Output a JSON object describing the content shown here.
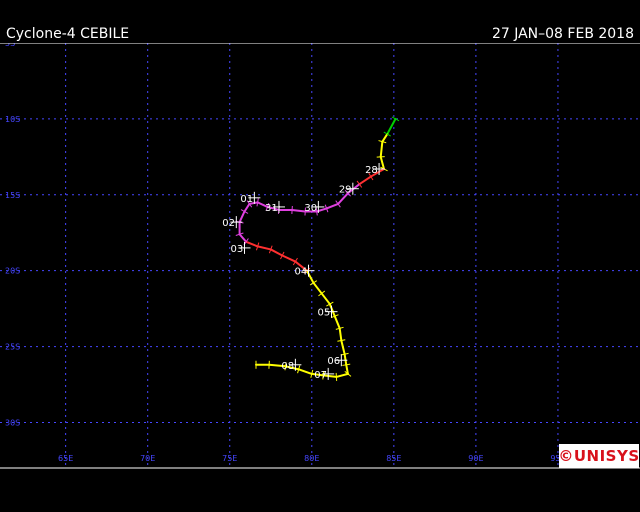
{
  "header": {
    "title": "Cyclone-4 CEBILE",
    "date_range": "27 JAN–08 FEB 2018"
  },
  "logo": {
    "text": "©UNISYS",
    "color": "#d8111b"
  },
  "map": {
    "background": "#000000",
    "grid_color": "#4646ff",
    "lon_range": [
      61,
      100
    ],
    "lat_range": [
      -5,
      -33
    ],
    "lon_labels": [
      "65E",
      "70E",
      "75E",
      "80E",
      "85E",
      "90E",
      "95E"
    ],
    "lat_labels": [
      "5S",
      "10S",
      "15S",
      "20S",
      "25S",
      "30S"
    ],
    "lon_values": [
      65,
      70,
      75,
      80,
      85,
      90,
      95
    ],
    "lat_values": [
      -5,
      -10,
      -15,
      -20,
      -25,
      -30
    ]
  },
  "legend_colors": {
    "depression": "#00d000",
    "storm": "#ffff00",
    "category1": "#ff3030",
    "category2": "#e040e0"
  },
  "track": [
    {
      "lon": 85.1,
      "lat": -10.0,
      "cls": "depression"
    },
    {
      "lon": 84.6,
      "lat": -11.0,
      "cls": "depression"
    },
    {
      "lon": 84.3,
      "lat": -11.5,
      "cls": "storm"
    },
    {
      "lon": 84.2,
      "lat": -12.5,
      "cls": "storm"
    },
    {
      "lon": 84.4,
      "lat": -13.3,
      "cls": "storm"
    },
    {
      "lon": 83.6,
      "lat": -13.8,
      "cls": "category1"
    },
    {
      "lon": 82.9,
      "lat": -14.3,
      "cls": "category1"
    },
    {
      "lon": 82.2,
      "lat": -14.9,
      "cls": "category2"
    },
    {
      "lon": 81.6,
      "lat": -15.6,
      "cls": "category2"
    },
    {
      "lon": 80.9,
      "lat": -15.9,
      "cls": "category2"
    },
    {
      "lon": 80.3,
      "lat": -16.1,
      "cls": "category2"
    },
    {
      "lon": 79.6,
      "lat": -16.1,
      "cls": "category2"
    },
    {
      "lon": 78.8,
      "lat": -16.0,
      "cls": "category2"
    },
    {
      "lon": 78.0,
      "lat": -16.0,
      "cls": "category2"
    },
    {
      "lon": 77.3,
      "lat": -15.8,
      "cls": "category2"
    },
    {
      "lon": 76.7,
      "lat": -15.5,
      "cls": "category2"
    },
    {
      "lon": 76.2,
      "lat": -15.6,
      "cls": "category2"
    },
    {
      "lon": 75.9,
      "lat": -16.1,
      "cls": "category2"
    },
    {
      "lon": 75.6,
      "lat": -16.8,
      "cls": "category2"
    },
    {
      "lon": 75.6,
      "lat": -17.6,
      "cls": "category2"
    },
    {
      "lon": 76.0,
      "lat": -18.1,
      "cls": "category2"
    },
    {
      "lon": 76.7,
      "lat": -18.4,
      "cls": "category1"
    },
    {
      "lon": 77.5,
      "lat": -18.6,
      "cls": "category1"
    },
    {
      "lon": 78.2,
      "lat": -19.0,
      "cls": "category1"
    },
    {
      "lon": 79.0,
      "lat": -19.4,
      "cls": "category1"
    },
    {
      "lon": 79.7,
      "lat": -20.0,
      "cls": "category1"
    },
    {
      "lon": 80.1,
      "lat": -20.8,
      "cls": "storm"
    },
    {
      "lon": 80.6,
      "lat": -21.5,
      "cls": "storm"
    },
    {
      "lon": 81.1,
      "lat": -22.2,
      "cls": "storm"
    },
    {
      "lon": 81.4,
      "lat": -23.0,
      "cls": "storm"
    },
    {
      "lon": 81.7,
      "lat": -23.8,
      "cls": "storm"
    },
    {
      "lon": 81.8,
      "lat": -24.6,
      "cls": "storm"
    },
    {
      "lon": 82.0,
      "lat": -25.5,
      "cls": "storm"
    },
    {
      "lon": 82.1,
      "lat": -26.2,
      "cls": "storm"
    },
    {
      "lon": 82.2,
      "lat": -26.8,
      "cls": "storm"
    },
    {
      "lon": 81.5,
      "lat": -27.0,
      "cls": "storm"
    },
    {
      "lon": 80.7,
      "lat": -26.9,
      "cls": "storm"
    },
    {
      "lon": 80.0,
      "lat": -26.8,
      "cls": "storm"
    },
    {
      "lon": 79.2,
      "lat": -26.5,
      "cls": "storm"
    },
    {
      "lon": 78.4,
      "lat": -26.3,
      "cls": "storm"
    },
    {
      "lon": 77.4,
      "lat": -26.2,
      "cls": "storm"
    },
    {
      "lon": 76.6,
      "lat": -26.2,
      "cls": "storm"
    }
  ],
  "day_labels": [
    {
      "text": "28",
      "lon": 84.1,
      "lat": -13.3
    },
    {
      "text": "29",
      "lon": 82.5,
      "lat": -14.6
    },
    {
      "text": "30",
      "lon": 80.4,
      "lat": -15.8
    },
    {
      "text": "31",
      "lon": 78.0,
      "lat": -15.8
    },
    {
      "text": "01",
      "lon": 76.5,
      "lat": -15.2
    },
    {
      "text": "02",
      "lon": 75.4,
      "lat": -16.8
    },
    {
      "text": "03",
      "lon": 75.9,
      "lat": -18.5
    },
    {
      "text": "04",
      "lon": 79.8,
      "lat": -20.0
    },
    {
      "text": "05",
      "lon": 81.2,
      "lat": -22.7
    },
    {
      "text": "06",
      "lon": 81.8,
      "lat": -25.9
    },
    {
      "text": "07",
      "lon": 81.0,
      "lat": -26.8
    },
    {
      "text": "08",
      "lon": 79.0,
      "lat": -26.2
    }
  ]
}
